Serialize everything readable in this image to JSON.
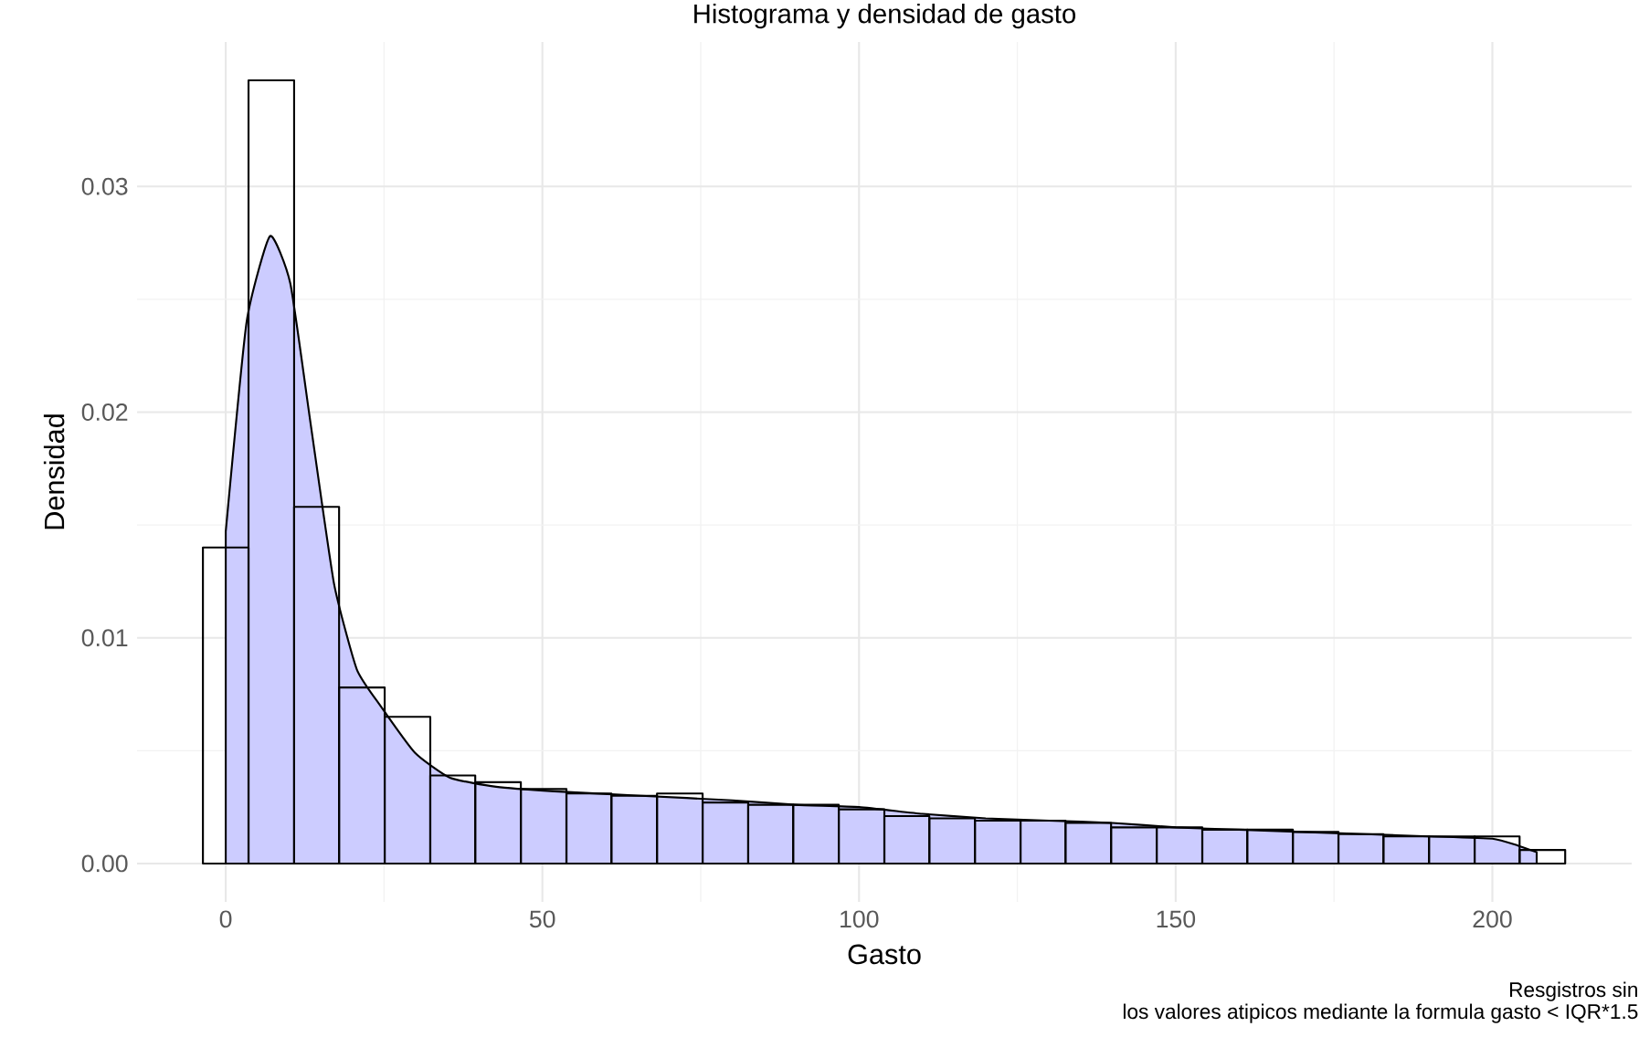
{
  "chart_data": {
    "type": "histogram",
    "title": "Histograma y densidad de gasto",
    "xlabel": "Gasto",
    "ylabel": "Densidad",
    "annotations": [
      "Resgistros sin",
      "los valores atipicos mediante la formula gasto < IQR*1.5"
    ],
    "bins": [
      -3.6,
      3.6,
      10.8,
      17.9,
      25.1,
      32.3,
      39.4,
      46.6,
      53.8,
      60.9,
      68.1,
      75.3,
      82.5,
      89.6,
      96.8,
      104.0,
      111.1,
      118.3,
      125.5,
      132.6,
      139.8,
      147.0,
      154.2,
      161.3,
      168.5,
      175.7,
      182.8,
      190.0,
      197.2,
      204.3,
      211.5
    ],
    "values": [
      0.014,
      0.0347,
      0.0158,
      0.0078,
      0.0065,
      0.0039,
      0.0036,
      0.0033,
      0.0031,
      0.003,
      0.0031,
      0.0027,
      0.0026,
      0.0026,
      0.0024,
      0.0021,
      0.002,
      0.0019,
      0.0019,
      0.0018,
      0.0016,
      0.0016,
      0.0015,
      0.0015,
      0.0014,
      0.0013,
      0.0012,
      0.0012,
      0.0012,
      0.0006
    ],
    "series": [
      {
        "type": "area",
        "color": "#ccccff",
        "x": [
          0,
          3.3,
          7.0,
          10.2,
          13.4,
          17.1,
          20.7,
          24.4,
          29.9,
          35.4,
          42.7,
          51.9,
          65.6,
          80,
          90,
          100,
          110,
          120,
          130,
          140,
          150,
          160,
          170,
          180,
          190,
          200,
          204,
          207
        ],
        "values": [
          0.0147,
          0.024,
          0.0278,
          0.0257,
          0.0195,
          0.0124,
          0.0086,
          0.007,
          0.0049,
          0.0038,
          0.0034,
          0.0032,
          0.003,
          0.0028,
          0.0026,
          0.0025,
          0.0022,
          0.002,
          0.0019,
          0.0018,
          0.0016,
          0.0015,
          0.0014,
          0.0013,
          0.0012,
          0.0011,
          0.0008,
          0.0005
        ]
      }
    ],
    "xlim": [
      -14,
      222
    ],
    "ylim": [
      -0.0017,
      0.0364
    ],
    "xticks": [
      0,
      50,
      100,
      150,
      200
    ],
    "yticks": [
      {
        "value": 0,
        "label": "0.00"
      },
      {
        "value": 0.01,
        "label": "0.01"
      },
      {
        "value": 0.02,
        "label": "0.02"
      },
      {
        "value": 0.03,
        "label": "0.03"
      }
    ],
    "grid": true
  }
}
